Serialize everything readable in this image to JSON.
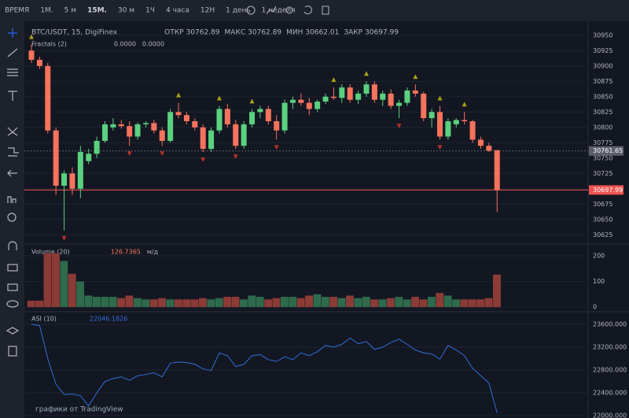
{
  "toolbar": {
    "items": [
      "ВРЕМЯ",
      "1М.",
      "5 м",
      "15М.",
      "30 м",
      "1Ч",
      "4 часа",
      "12Н",
      "1 день",
      "1 неделя"
    ],
    "active": 3
  },
  "chart_data": [
    {
      "type": "candlestick",
      "title": "BTC/USDT, 15, DigiFinex",
      "legend": [
        {
          "label": "ОТКР",
          "value": "30762.89"
        },
        {
          "label": "МАКС",
          "value": "30762.89"
        },
        {
          "label": "МИН",
          "value": "30662.01"
        },
        {
          "label": "ЗАКР",
          "value": "30697.99"
        }
      ],
      "indicator": {
        "name": "Fractals (2)",
        "values": [
          "0.0000",
          "0.0000"
        ]
      },
      "up_color": "#5ad17f",
      "down_color": "#f7735c",
      "ohlc": [
        [
          30925,
          30935,
          30905,
          30910
        ],
        [
          30910,
          30915,
          30895,
          30900
        ],
        [
          30900,
          30905,
          30790,
          30795
        ],
        [
          30795,
          30800,
          30690,
          30705
        ],
        [
          30705,
          30730,
          30632,
          30725
        ],
        [
          30725,
          30735,
          30690,
          30700
        ],
        [
          30700,
          30770,
          30685,
          30760
        ],
        [
          30745,
          30765,
          30740,
          30757
        ],
        [
          30757,
          30785,
          30750,
          30778
        ],
        [
          30778,
          30810,
          30775,
          30805
        ],
        [
          30800,
          30815,
          30795,
          30805
        ],
        [
          30805,
          30812,
          30798,
          30802
        ],
        [
          30802,
          30810,
          30770,
          30785
        ],
        [
          30785,
          30808,
          30780,
          30805
        ],
        [
          30805,
          30810,
          30800,
          30807
        ],
        [
          30807,
          30812,
          30790,
          30795
        ],
        [
          30795,
          30800,
          30770,
          30778
        ],
        [
          30778,
          30830,
          30775,
          30825
        ],
        [
          30825,
          30840,
          30815,
          30820
        ],
        [
          30820,
          30825,
          30805,
          30810
        ],
        [
          30810,
          30815,
          30795,
          30800
        ],
        [
          30800,
          30805,
          30760,
          30765
        ],
        [
          30765,
          30800,
          30760,
          30795
        ],
        [
          30795,
          30835,
          30790,
          30830
        ],
        [
          30830,
          30838,
          30800,
          30805
        ],
        [
          30805,
          30812,
          30765,
          30770
        ],
        [
          30770,
          30810,
          30765,
          30805
        ],
        [
          30805,
          30830,
          30800,
          30825
        ],
        [
          30825,
          30835,
          30815,
          30830
        ],
        [
          30830,
          30835,
          30805,
          30810
        ],
        [
          30810,
          30820,
          30780,
          30795
        ],
        [
          30795,
          30845,
          30790,
          30840
        ],
        [
          30840,
          30850,
          30830,
          30845
        ],
        [
          30845,
          30855,
          30835,
          30840
        ],
        [
          30840,
          30848,
          30820,
          30830
        ],
        [
          30830,
          30845,
          30825,
          30842
        ],
        [
          30842,
          30855,
          30838,
          30850
        ],
        [
          30850,
          30865,
          30845,
          30848
        ],
        [
          30848,
          30870,
          30840,
          30865
        ],
        [
          30865,
          30870,
          30840,
          30845
        ],
        [
          30845,
          30860,
          30838,
          30855
        ],
        [
          30855,
          30875,
          30850,
          30870
        ],
        [
          30870,
          30875,
          30840,
          30845
        ],
        [
          30845,
          30860,
          30835,
          30855
        ],
        [
          30855,
          30862,
          30830,
          30835
        ],
        [
          30835,
          30845,
          30815,
          30840
        ],
        [
          30840,
          30865,
          30835,
          30860
        ],
        [
          30860,
          30870,
          30850,
          30855
        ],
        [
          30855,
          30858,
          30810,
          30815
        ],
        [
          30815,
          30830,
          30800,
          30825
        ],
        [
          30825,
          30835,
          30780,
          30785
        ],
        [
          30785,
          30815,
          30780,
          30810
        ],
        [
          30805,
          30815,
          30800,
          30812
        ],
        [
          30812,
          30825,
          30805,
          30810
        ],
        [
          30810,
          30812,
          30775,
          30780
        ],
        [
          30780,
          30785,
          30765,
          30770
        ],
        [
          30770,
          30775,
          30760,
          30762
        ],
        [
          30762.89,
          30762.89,
          30662.01,
          30697.99
        ]
      ],
      "fractals_up": [
        0,
        18,
        23,
        27,
        37,
        41,
        47,
        50,
        53
      ],
      "fractals_down": [
        4,
        12,
        16,
        21,
        25,
        30,
        45,
        50
      ],
      "ylim": [
        30610,
        30969
      ],
      "yticks": [
        30950,
        30925,
        30900,
        30875,
        30850,
        30825,
        30800,
        30775,
        30750,
        30725,
        30700,
        30675,
        30650,
        30625
      ],
      "price_lines": [
        {
          "value": 30761.65,
          "color": "#5d606b"
        },
        {
          "value": 30697.99,
          "color": "#ef5350"
        }
      ]
    },
    {
      "type": "bar",
      "title": "Volume (20)",
      "value_text": "126.7365",
      "unit": "м/д",
      "up_color": "#2e6b4d",
      "down_color": "#8c3b36",
      "values": [
        25,
        25,
        210,
        210,
        180,
        130,
        100,
        45,
        40,
        40,
        40,
        35,
        45,
        35,
        30,
        30,
        35,
        30,
        30,
        30,
        30,
        35,
        30,
        35,
        40,
        40,
        30,
        45,
        40,
        30,
        35,
        40,
        40,
        35,
        45,
        50,
        40,
        40,
        35,
        45,
        35,
        40,
        30,
        30,
        35,
        40,
        30,
        40,
        30,
        40,
        55,
        45,
        30,
        30,
        30,
        30,
        35,
        126.7365
      ],
      "ylim": [
        -15,
        240
      ],
      "yticks": [
        0,
        100,
        200
      ]
    },
    {
      "type": "line",
      "title": "ASI (10)",
      "value_text": "22046.1826",
      "color": "#2f6fd8",
      "values": [
        23600,
        23580,
        23000,
        22550,
        22370,
        22380,
        22350,
        22170,
        22400,
        22600,
        22650,
        22680,
        22620,
        22700,
        22720,
        22750,
        22680,
        22920,
        22940,
        22930,
        22900,
        22820,
        22790,
        23100,
        23050,
        22860,
        22900,
        23050,
        23070,
        22980,
        22950,
        23030,
        22980,
        23100,
        23050,
        23120,
        23230,
        23200,
        23250,
        23360,
        23260,
        23300,
        23160,
        23200,
        23280,
        23340,
        23250,
        23150,
        23100,
        23080,
        22990,
        23230,
        23150,
        23050,
        22830,
        22700,
        22570,
        22046.1826
      ],
      "ylim": [
        21959,
        23793
      ],
      "yticks": [
        {
          "value": 23600,
          "label": "23600.000"
        },
        {
          "value": 23200,
          "label": "23200.000"
        },
        {
          "value": 22800,
          "label": "22800.000"
        },
        {
          "value": 22400,
          "label": "22400.000"
        },
        {
          "value": 22000,
          "label": "22000.000"
        }
      ]
    }
  ],
  "footer": "графики от TradingView"
}
